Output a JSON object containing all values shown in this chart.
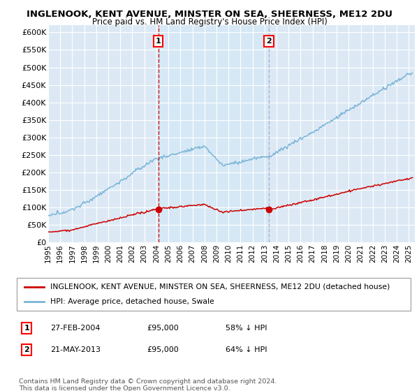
{
  "title": "INGLENOOK, KENT AVENUE, MINSTER ON SEA, SHEERNESS, ME12 2DU",
  "subtitle": "Price paid vs. HM Land Registry's House Price Index (HPI)",
  "hpi_color": "#7ab4d8",
  "price_color": "#cc0000",
  "vline1_color": "#cc0000",
  "vline2_color": "#aaaacc",
  "shade_color": "#d6e8f5",
  "background_color": "#dce9f5",
  "ylim": [
    0,
    620000
  ],
  "yticks": [
    0,
    50000,
    100000,
    150000,
    200000,
    250000,
    300000,
    350000,
    400000,
    450000,
    500000,
    550000,
    600000
  ],
  "sale1_date": "27-FEB-2004",
  "sale1_price": 95000,
  "sale1_label": "58% ↓ HPI",
  "sale1_x": 2004.15,
  "sale2_date": "21-MAY-2013",
  "sale2_price": 95000,
  "sale2_label": "64% ↓ HPI",
  "sale2_x": 2013.38,
  "legend_line1": "INGLENOOK, KENT AVENUE, MINSTER ON SEA, SHEERNESS, ME12 2DU (detached house)",
  "legend_line2": "HPI: Average price, detached house, Swale",
  "footnote": "Contains HM Land Registry data © Crown copyright and database right 2024.\nThis data is licensed under the Open Government Licence v3.0.",
  "xmin": 1995,
  "xmax": 2025.5
}
